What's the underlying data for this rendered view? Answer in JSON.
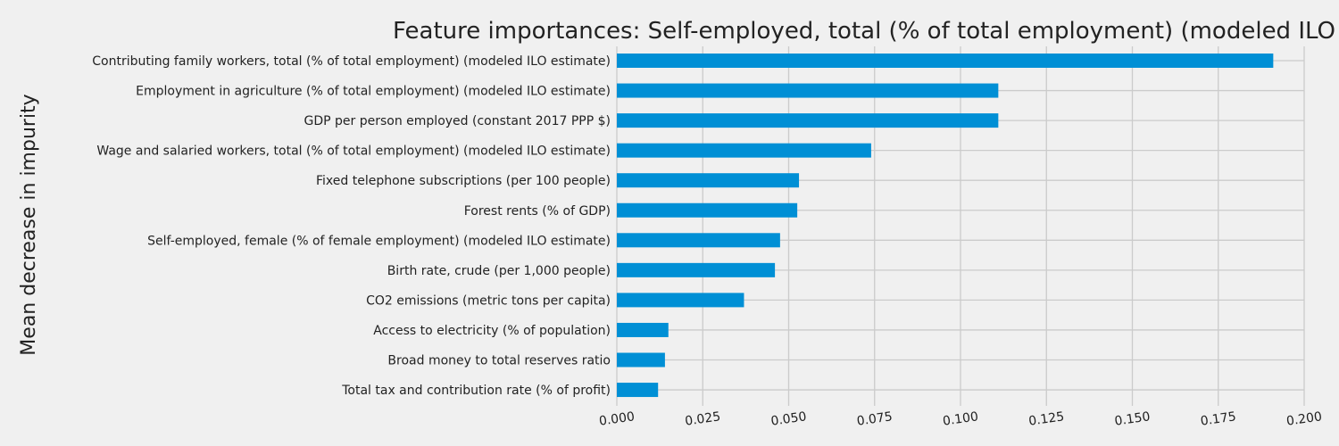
{
  "chart_data": {
    "type": "bar",
    "orientation": "horizontal",
    "title": "Feature importances: Self-employed, total (% of total employment) (modeled ILO estimate)",
    "ylabel": "Mean decrease in impurity",
    "xlabel": "",
    "xlim": [
      0,
      0.2
    ],
    "xticks": [
      "0.000",
      "0.025",
      "0.050",
      "0.075",
      "0.100",
      "0.125",
      "0.150",
      "0.175",
      "0.200"
    ],
    "grid": true,
    "legend": "none",
    "bar_color": "#008fd5",
    "categories": [
      "Contributing family workers, total (% of total employment) (modeled ILO estimate)",
      "Employment in agriculture (% of total employment) (modeled ILO estimate)",
      "GDP per person employed (constant 2017 PPP $)",
      "Wage and salaried workers, total (% of total employment) (modeled ILO estimate)",
      "Fixed telephone subscriptions (per 100 people)",
      "Forest rents (% of GDP)",
      "Self-employed, female (% of female employment) (modeled ILO estimate)",
      "Birth rate, crude (per 1,000 people)",
      "CO2 emissions (metric tons per capita)",
      "Access to electricity (% of population)",
      "Broad money to total reserves ratio",
      "Total tax and contribution rate (% of profit)"
    ],
    "values": [
      0.191,
      0.111,
      0.111,
      0.074,
      0.053,
      0.0525,
      0.0475,
      0.046,
      0.037,
      0.015,
      0.014,
      0.012
    ]
  }
}
